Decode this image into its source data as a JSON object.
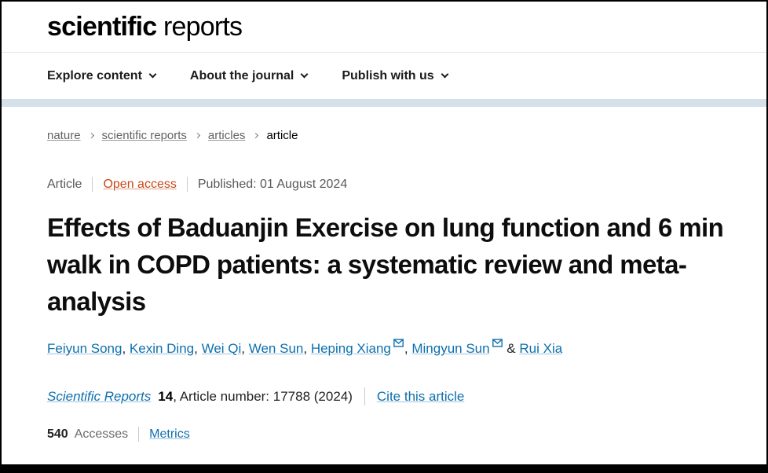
{
  "header": {
    "logo_bold": "scientific",
    "logo_light": " reports",
    "nav": [
      {
        "label": "Explore content"
      },
      {
        "label": "About the journal"
      },
      {
        "label": "Publish with us"
      }
    ]
  },
  "icons": {
    "chevron_down": "chevron-down (CSS shape)",
    "chevron_right": "chevron-right (CSS shape)",
    "envelope": "email envelope (inline SVG)"
  },
  "breadcrumb": {
    "links": [
      "nature",
      "scientific reports",
      "articles"
    ],
    "current": "article"
  },
  "article_meta": {
    "type": "Article",
    "access_label": "Open access",
    "published": "Published: 01 August 2024"
  },
  "article": {
    "title": "Effects of Baduanjin Exercise on lung function and 6 min walk in COPD patients: a systematic review and meta-analysis"
  },
  "authors": [
    {
      "name": "Feiyun Song",
      "email": false
    },
    {
      "name": "Kexin Ding",
      "email": false
    },
    {
      "name": "Wei Qi",
      "email": false
    },
    {
      "name": "Wen Sun",
      "email": false
    },
    {
      "name": "Heping Xiang",
      "email": true
    },
    {
      "name": "Mingyun Sun",
      "email": true
    },
    {
      "name": "Rui Xia",
      "email": false
    }
  ],
  "author_list": {
    "separator": ", ",
    "last_separator": " & "
  },
  "citation": {
    "journal": "Scientific Reports",
    "volume": "14",
    "rest": ", Article number: 17788 (2024)",
    "cite_label": "Cite this article"
  },
  "metrics": {
    "accesses_count": "540",
    "accesses_label": "Accesses",
    "metrics_label": "Metrics"
  },
  "colors": {
    "link_blue": "#0e6fad",
    "open_access_orange": "#c6481a",
    "band_blue": "#d5e1e8",
    "nav_text": "#1c1c1c",
    "muted_gray": "#595959"
  }
}
